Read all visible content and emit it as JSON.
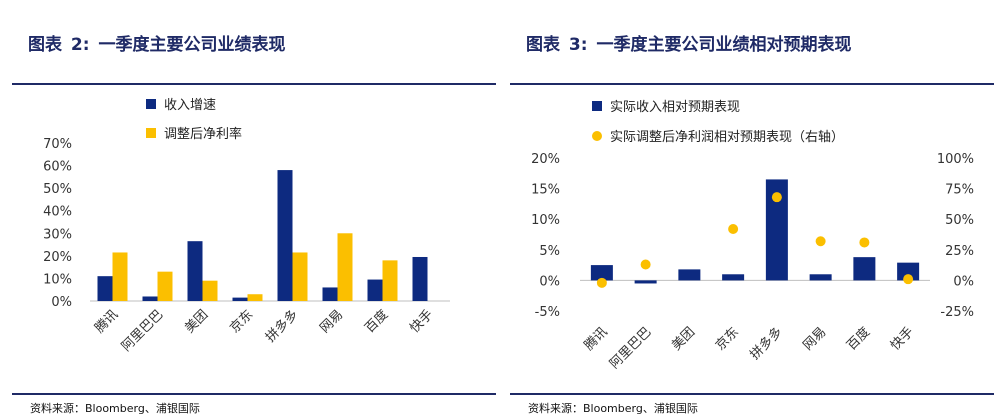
{
  "colors": {
    "navy": "#0d2a80",
    "gold": "#fbbf00",
    "title": "#1f2a66"
  },
  "left": {
    "title_prefix": "图表",
    "title_num": "2:",
    "title_text": "一季度主要公司业绩表现",
    "source": "资料来源：Bloomberg、浦银国际"
  },
  "right": {
    "title_prefix": "图表",
    "title_num": "3:",
    "title_text": "一季度主要公司业绩相对预期表现",
    "source": "资料来源：Bloomberg、浦银国际"
  },
  "chart_data": [
    {
      "type": "bar",
      "categories": [
        "腾讯",
        "阿里巴巴",
        "美团",
        "京东",
        "拼多多",
        "网易",
        "百度",
        "快手"
      ],
      "series": [
        {
          "name": "收入增速",
          "values": [
            11,
            2,
            26.5,
            1.5,
            58,
            6,
            9.5,
            19.5
          ]
        },
        {
          "name": "调整后净利率",
          "values": [
            21.5,
            13,
            9,
            3,
            21.5,
            30,
            18,
            null
          ]
        }
      ],
      "y_ticks": [
        "0%",
        "10%",
        "20%",
        "30%",
        "40%",
        "50%",
        "60%",
        "70%"
      ],
      "ylim": [
        0,
        70
      ],
      "legend_position": "top"
    },
    {
      "type": "bar",
      "categories": [
        "腾讯",
        "阿里巴巴",
        "美团",
        "京东",
        "拼多多",
        "网易",
        "百度",
        "快手"
      ],
      "series": [
        {
          "name": "实际收入相对预期表现",
          "values": [
            2.5,
            -0.5,
            1.8,
            1.0,
            16.5,
            1.0,
            3.8,
            2.9
          ]
        },
        {
          "name": "实际调整后净利润相对预期表现（右轴）",
          "values": [
            -2,
            13,
            null,
            42,
            68,
            32,
            31,
            1
          ],
          "axis": "right",
          "marker": "dot"
        }
      ],
      "y_ticks": [
        "-5%",
        "0%",
        "5%",
        "10%",
        "15%",
        "20%"
      ],
      "y2_ticks": [
        "-25%",
        "0%",
        "25%",
        "50%",
        "75%",
        "100%"
      ],
      "ylim": [
        -5,
        20
      ],
      "y2lim": [
        -25,
        100
      ],
      "legend_position": "top"
    }
  ]
}
